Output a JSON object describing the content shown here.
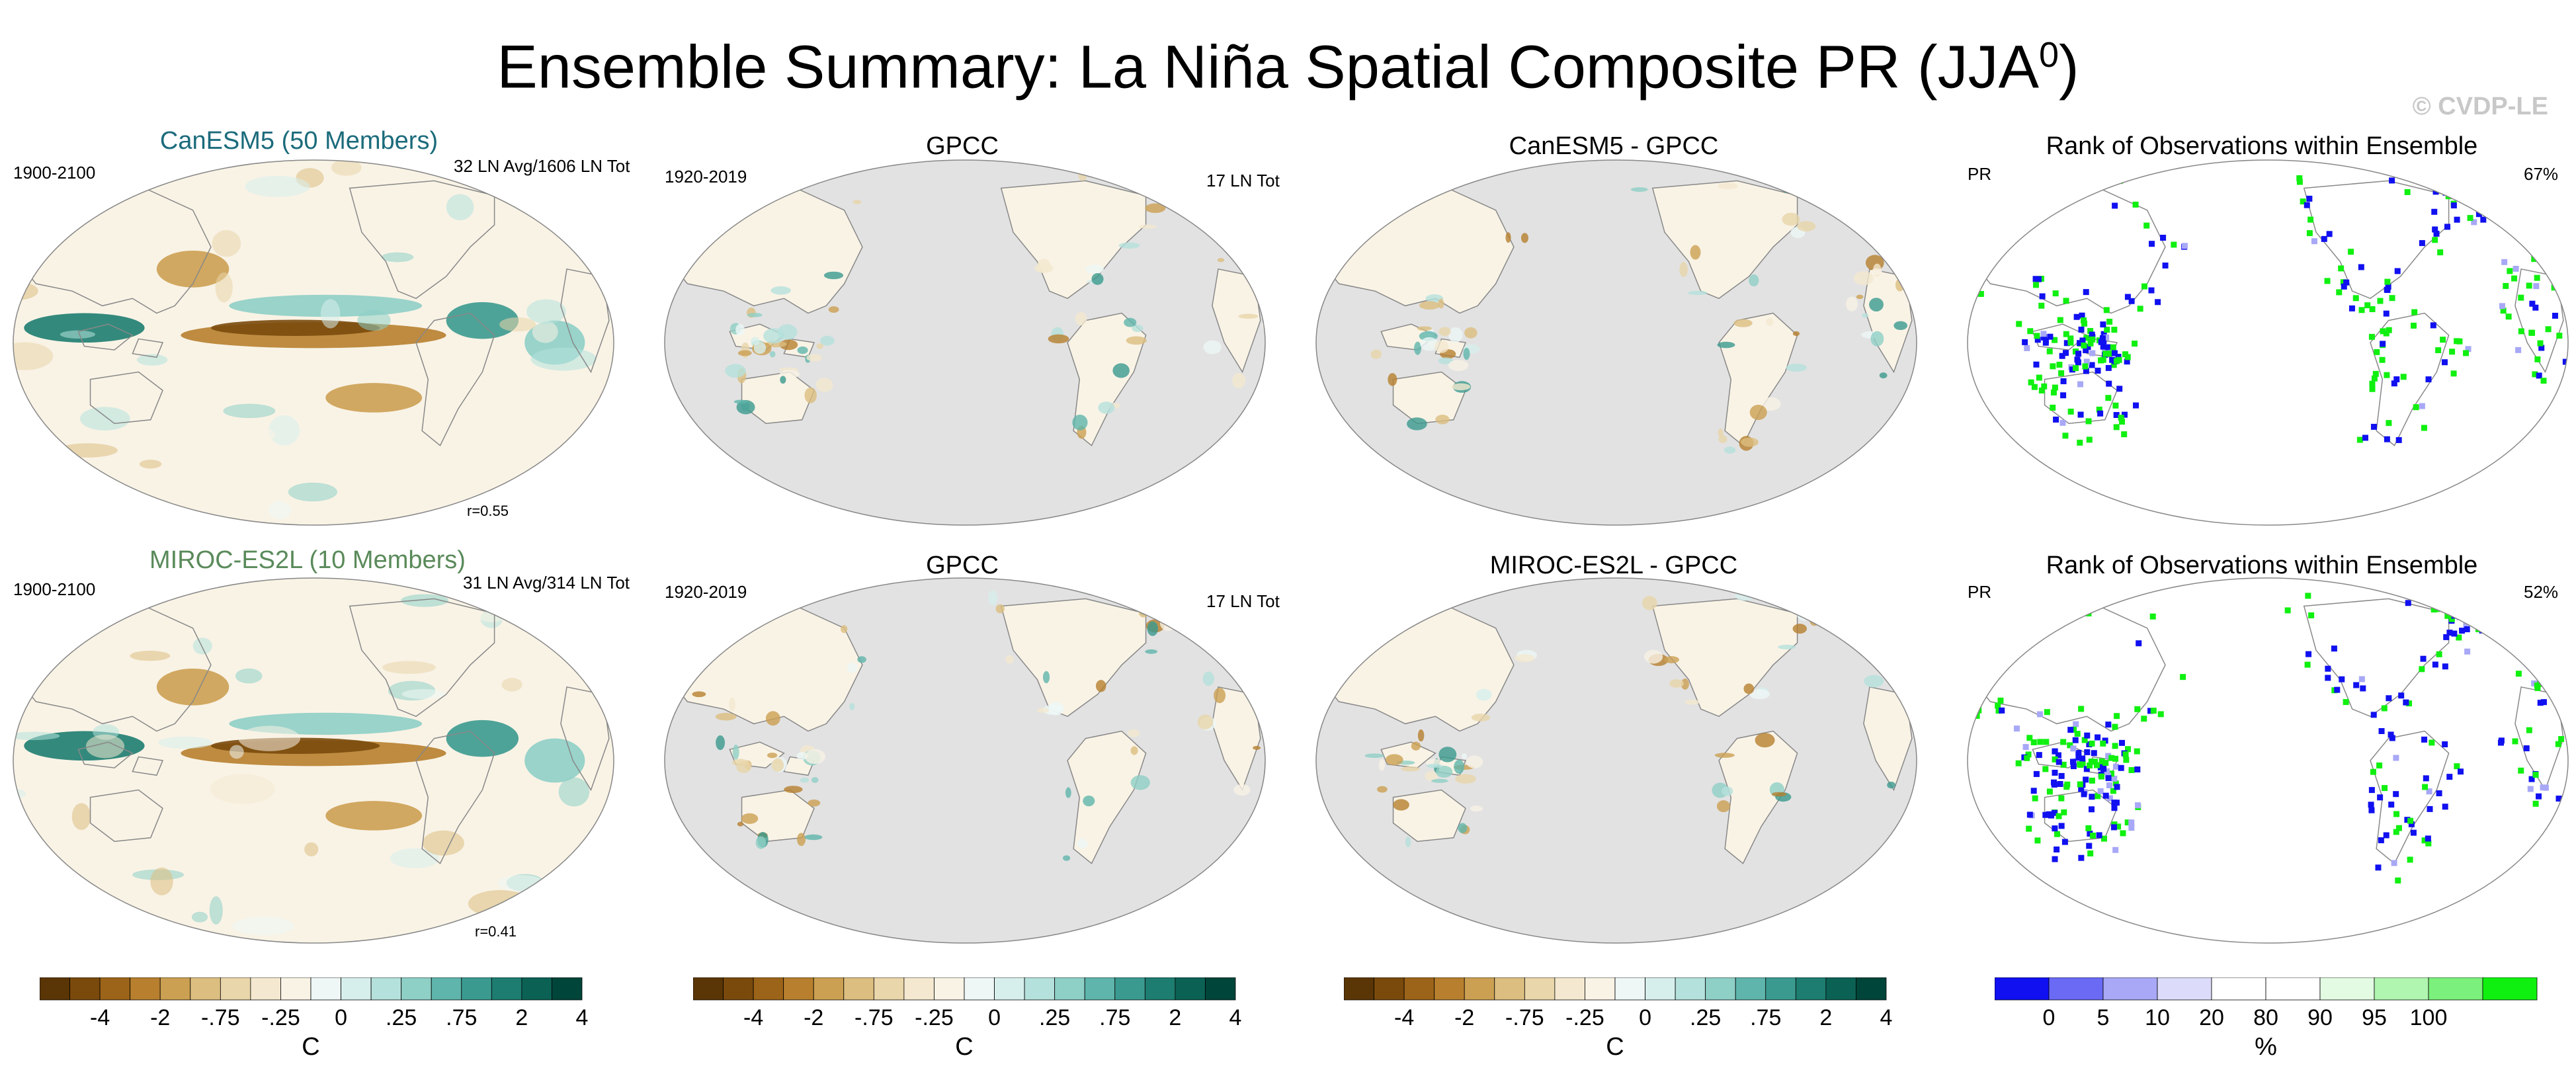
{
  "title": {
    "main": "Ensemble Summary: La Niña Spatial Composite PR (JJA",
    "sup": "0",
    "close": ")"
  },
  "watermark": "© CVDP-LE",
  "colors": {
    "land_gray": "#e2e2e2",
    "diverging": [
      "#5a3505",
      "#7a4a0c",
      "#9c6419",
      "#b77f2e",
      "#cca052",
      "#dcbe80",
      "#e9d6aa",
      "#f4e9d0",
      "#f9f3e6",
      "#eef7f6",
      "#d7efec",
      "#b5e1dc",
      "#8ecfc6",
      "#5fb5ab",
      "#3b9a8f",
      "#1d7d70",
      "#0b6154",
      "#00453a"
    ],
    "rank": [
      "#1010f0",
      "#6a6af5",
      "#a8a8f7",
      "#dcdcfa",
      "#ffffff",
      "#ffffff",
      "#e2fbe2",
      "#b0f5b0",
      "#7cf07c",
      "#10f010"
    ]
  },
  "rows": [
    {
      "model_title": "CanESM5 (50 Members)",
      "model_title_color": "#1b6b7b",
      "model_period": "1900-2100",
      "model_count": "32 LN Avg/1606 LN Tot",
      "model_r": "r=0.55",
      "obs_title": "GPCC",
      "obs_period": "1920-2019",
      "obs_count": "17 LN Tot",
      "diff_title": "CanESM5 - GPCC",
      "rank_title": "Rank of Observations within Ensemble",
      "rank_var": "PR",
      "rank_pct": "67%"
    },
    {
      "model_title": "MIROC-ES2L (10 Members)",
      "model_title_color": "#5a8a5a",
      "model_period": "1900-2100",
      "model_count": "31 LN Avg/314 LN Tot",
      "model_r": "r=0.41",
      "obs_title": "GPCC",
      "obs_period": "1920-2019",
      "obs_count": "17 LN Tot",
      "diff_title": "MIROC-ES2L - GPCC",
      "rank_title": "Rank of Observations within Ensemble",
      "rank_var": "PR",
      "rank_pct": "52%"
    }
  ],
  "colorbars": {
    "diverging_ticks": [
      "-4",
      "-2",
      "-.75",
      "-.25",
      "0",
      ".25",
      ".75",
      "2",
      "4"
    ],
    "diverging_unit": "C",
    "rank_ticks": [
      "0",
      "5",
      "10",
      "20",
      "80",
      "90",
      "95",
      "100"
    ],
    "rank_unit": "%"
  },
  "chart_data": [
    {
      "type": "heatmap",
      "title": "CanESM5 (50 Members)",
      "subtitle": "1900-2100",
      "annotation": [
        "32 LN Avg/1606 LN Tot",
        "r=0.55"
      ],
      "variable": "PR",
      "units": "C",
      "colorbar_levels": [
        -4,
        -2,
        -0.75,
        -0.25,
        0,
        0.25,
        0.75,
        2,
        4
      ]
    },
    {
      "type": "heatmap",
      "title": "GPCC",
      "subtitle": "1920-2019",
      "annotation": [
        "17 LN Tot"
      ],
      "variable": "PR",
      "units": "C",
      "colorbar_levels": [
        -4,
        -2,
        -0.75,
        -0.25,
        0,
        0.25,
        0.75,
        2,
        4
      ]
    },
    {
      "type": "heatmap",
      "title": "CanESM5 - GPCC",
      "variable": "PR",
      "units": "C",
      "colorbar_levels": [
        -4,
        -2,
        -0.75,
        -0.25,
        0,
        0.25,
        0.75,
        2,
        4
      ]
    },
    {
      "type": "heatmap",
      "title": "Rank of Observations within Ensemble",
      "subtitle": "PR",
      "annotation": [
        "67%"
      ],
      "units": "%",
      "colorbar_levels": [
        0,
        5,
        10,
        20,
        80,
        90,
        95,
        100
      ]
    },
    {
      "type": "heatmap",
      "title": "MIROC-ES2L (10 Members)",
      "subtitle": "1900-2100",
      "annotation": [
        "31 LN Avg/314 LN Tot",
        "r=0.41"
      ],
      "variable": "PR",
      "units": "C",
      "colorbar_levels": [
        -4,
        -2,
        -0.75,
        -0.25,
        0,
        0.25,
        0.75,
        2,
        4
      ]
    },
    {
      "type": "heatmap",
      "title": "GPCC",
      "subtitle": "1920-2019",
      "annotation": [
        "17 LN Tot"
      ],
      "variable": "PR",
      "units": "C",
      "colorbar_levels": [
        -4,
        -2,
        -0.75,
        -0.25,
        0,
        0.25,
        0.75,
        2,
        4
      ]
    },
    {
      "type": "heatmap",
      "title": "MIROC-ES2L - GPCC",
      "variable": "PR",
      "units": "C",
      "colorbar_levels": [
        -4,
        -2,
        -0.75,
        -0.25,
        0,
        0.25,
        0.75,
        2,
        4
      ]
    },
    {
      "type": "heatmap",
      "title": "Rank of Observations within Ensemble",
      "subtitle": "PR",
      "annotation": [
        "52%"
      ],
      "units": "%",
      "colorbar_levels": [
        0,
        5,
        10,
        20,
        80,
        90,
        95,
        100
      ]
    }
  ]
}
